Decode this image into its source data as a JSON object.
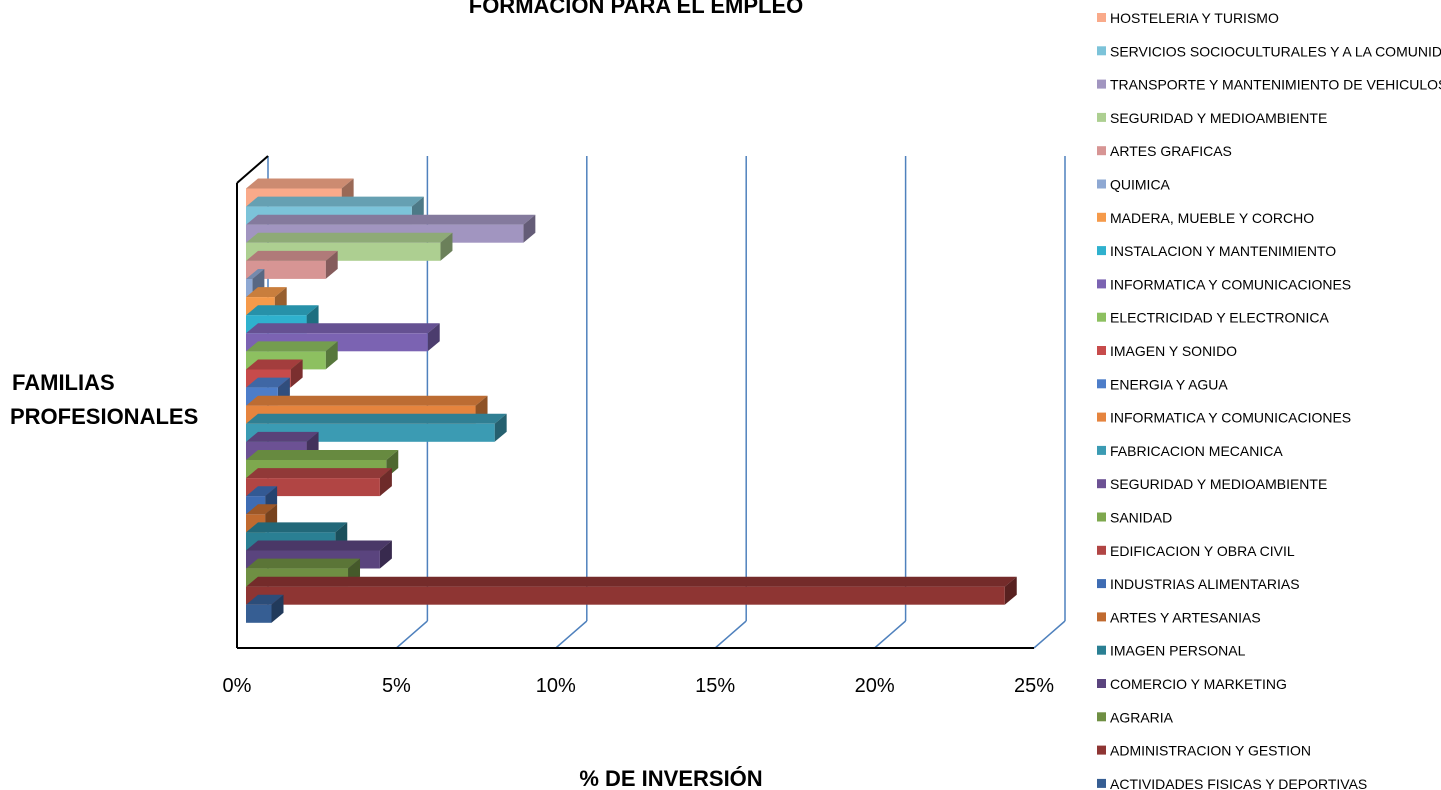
{
  "chart_data": {
    "type": "bar",
    "orientation": "horizontal",
    "three_d": true,
    "title": "FORMACION PARA EL EMPLEO",
    "xlabel": "% DE INVERSIÓN",
    "ylabel_lines": [
      "FAMILIAS",
      "PROFESIONALES"
    ],
    "xlim": [
      0,
      25
    ],
    "xticks": [
      0,
      5,
      10,
      15,
      20,
      25
    ],
    "xtick_labels": [
      "0%",
      "5%",
      "10%",
      "15%",
      "20%",
      "25%"
    ],
    "grid": true,
    "legend_position": "right",
    "series": [
      {
        "name": "HOSTELERIA Y TURISMO",
        "value": 3.0,
        "color": "#F9AA8A"
      },
      {
        "name": "SERVICIOS SOCIOCULTURALES Y A LA COMUNIDAD",
        "value": 5.2,
        "color": "#7CC3D9"
      },
      {
        "name": "TRANSPORTE Y MANTENIMIENTO DE VEHICULOS",
        "value": 8.7,
        "color": "#A195C0"
      },
      {
        "name": "SEGURIDAD Y MEDIOAMBIENTE",
        "value": 6.1,
        "color": "#ADCF91"
      },
      {
        "name": "ARTES GRAFICAS",
        "value": 2.5,
        "color": "#D79594"
      },
      {
        "name": "QUIMICA",
        "value": 0.2,
        "color": "#8EA8D3"
      },
      {
        "name": "MADERA, MUEBLE Y CORCHO",
        "value": 0.9,
        "color": "#F59A4A"
      },
      {
        "name": "INSTALACION Y MANTENIMIENTO",
        "value": 1.9,
        "color": "#2FB1CE"
      },
      {
        "name": "INFORMATICA Y COMUNICACIONES",
        "value": 5.7,
        "color": "#7B63B2"
      },
      {
        "name": "ELECTRICIDAD Y ELECTRONICA",
        "value": 2.5,
        "color": "#8DC060"
      },
      {
        "name": "IMAGEN Y SONIDO",
        "value": 1.4,
        "color": "#C74B4B"
      },
      {
        "name": "ENERGIA Y AGUA",
        "value": 1.0,
        "color": "#4D7DC9"
      },
      {
        "name": "INFORMATICA Y COMUNICACIONES",
        "value": 7.2,
        "color": "#E5843E"
      },
      {
        "name": "FABRICACION MECANICA",
        "value": 7.8,
        "color": "#3B9BB3"
      },
      {
        "name": "SEGURIDAD Y MEDIOAMBIENTE",
        "value": 1.9,
        "color": "#6C5194"
      },
      {
        "name": "SANIDAD",
        "value": 4.4,
        "color": "#7EA84E"
      },
      {
        "name": "EDIFICACION Y OBRA CIVIL",
        "value": 4.2,
        "color": "#B14544"
      },
      {
        "name": "INDUSTRIAS ALIMENTARIAS",
        "value": 0.6,
        "color": "#3E6CB3"
      },
      {
        "name": "ARTES Y ARTESANIAS",
        "value": 0.6,
        "color": "#C06A2F"
      },
      {
        "name": "IMAGEN PERSONAL",
        "value": 2.8,
        "color": "#2A7F93"
      },
      {
        "name": "COMERCIO Y MARKETING",
        "value": 4.2,
        "color": "#5A447E"
      },
      {
        "name": "AGRARIA",
        "value": 3.2,
        "color": "#6F8F43"
      },
      {
        "name": "ADMINISTRACION Y GESTION",
        "value": 23.8,
        "color": "#8E3533"
      },
      {
        "name": "ACTIVIDADES FISICAS Y DEPORTIVAS",
        "value": 0.8,
        "color": "#365E93"
      }
    ]
  }
}
